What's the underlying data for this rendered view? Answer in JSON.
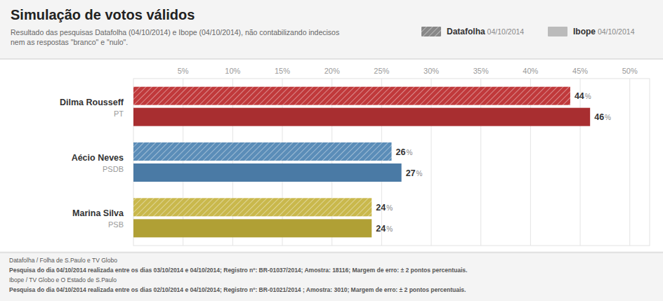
{
  "chart_data": {
    "type": "bar",
    "orientation": "horizontal",
    "title": "Simulação de votos válidos",
    "subtitle": "Resultado das pesquisas Datafolha (04/10/2014) e Ibope (04/10/2014), não contabilizando indecisos\nnem as respostas \"branco\" e \"nulo\".",
    "categories": [
      "Dilma Rousseff",
      "Aécio Neves",
      "Marina Silva"
    ],
    "annotations": [
      "PT",
      "PSDB",
      "PSB"
    ],
    "series": [
      {
        "name": "Datafolha 04/10/2014",
        "colors": [
          "#c0393b",
          "#5b8db8",
          "#c9b84c"
        ],
        "values": [
          44,
          26,
          24
        ],
        "value_labels": [
          "44%",
          "26%",
          "24%"
        ]
      },
      {
        "name": "Ibope 04/10/2014",
        "colors": [
          "#a82e30",
          "#4a7aa5",
          "#b0a035"
        ],
        "values": [
          46,
          27,
          24
        ],
        "value_labels": [
          "46%",
          "27%",
          "24%"
        ]
      }
    ],
    "xlim": [
      0,
      52
    ],
    "xticks": [
      {
        "value": 5,
        "label": "5%"
      },
      {
        "value": 10,
        "label": "10%"
      },
      {
        "value": 15,
        "label": "15%"
      },
      {
        "value": 20,
        "label": "20%"
      },
      {
        "value": 25,
        "label": "25%"
      },
      {
        "value": 30,
        "label": "30%"
      },
      {
        "value": 35,
        "label": "35%"
      },
      {
        "value": 40,
        "label": "40%"
      },
      {
        "value": 45,
        "label": "45%"
      },
      {
        "value": 50,
        "label": "50%"
      }
    ],
    "grid": true,
    "data_labels": true,
    "tick_labels": "x",
    "footer": [
      "Datafolha / Folha de S.Paulo e TV Globo",
      "Pesquisa do dia 04/10/2014 realizada entre os dias 03/10/2014 e 04/10/2014; Registro nº: BR-01037/2014; Amostra: 18116; Margem de erro: ± 2 pontos percentuais.",
      "Ibope / TV Globo e O Estado de S.Paulo",
      "Pesquisa do dia 04/10/2014 realizada entre os dias 02/10/2014 e 04/10/2014; Registro nº: BR-01021/2014 ; Amostra: 3010; Margem de erro: ± 2 pontos percentuais."
    ]
  }
}
